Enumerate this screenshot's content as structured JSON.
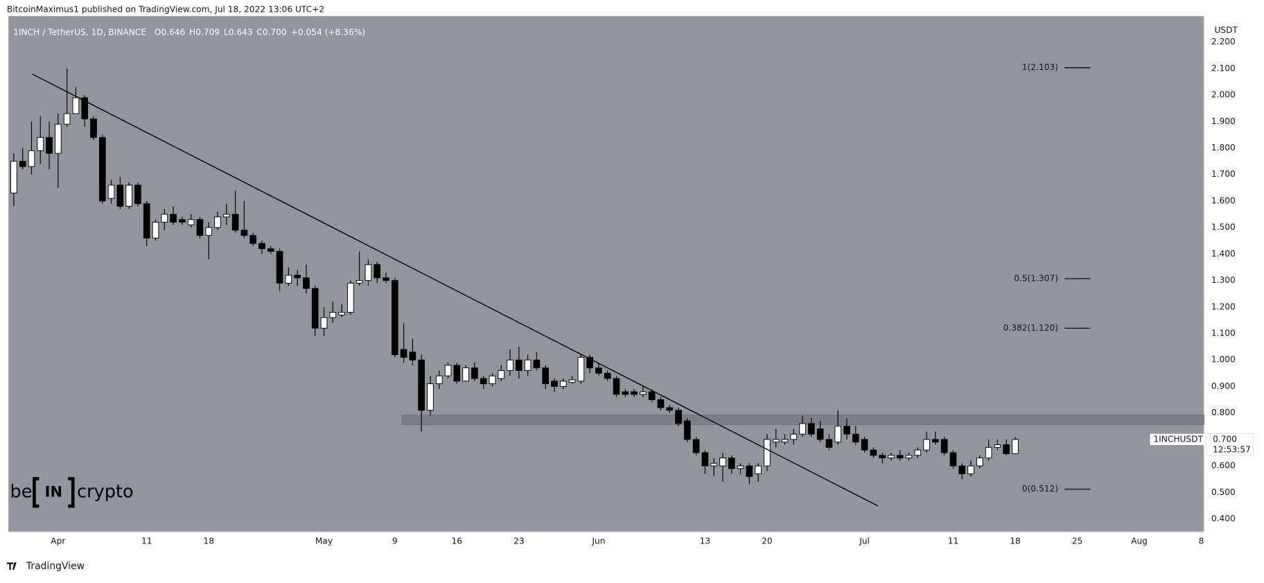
{
  "chart_data": {
    "type": "candlestick",
    "header": "BitcoinMaximus1 published on TradingView.com, Jul 18, 2022 13:06 UTC+2",
    "symbol": "1INCH / TetherUS, 1D, BINANCE",
    "ohlc_legend": [
      {
        "key": "O",
        "value": "0.646"
      },
      {
        "key": "H",
        "value": "0.709"
      },
      {
        "key": "L",
        "value": "0.643"
      },
      {
        "key": "C",
        "value": "0.700"
      }
    ],
    "change": "+0.054 (+8.36%)",
    "y_unit": "USDT",
    "up_color": "#ffffff",
    "down_color": "#000000",
    "background": "#93959c",
    "grid": false,
    "open": [
      1.63,
      1.75,
      1.73,
      1.79,
      1.84,
      1.78,
      1.89,
      1.93,
      1.99,
      1.91,
      1.84,
      1.61,
      1.66,
      1.58,
      1.66,
      1.59,
      1.46,
      1.52,
      1.55,
      1.53,
      1.51,
      1.53,
      1.47,
      1.5,
      1.54,
      1.55,
      1.49,
      1.47,
      1.44,
      1.42,
      1.41,
      1.29,
      1.32,
      1.31,
      1.27,
      1.12,
      1.16,
      1.17,
      1.18,
      1.29,
      1.3,
      1.36,
      1.31,
      1.3,
      1.04,
      1.03,
      1.0,
      0.81,
      0.91,
      0.94,
      0.98,
      0.92,
      0.97,
      0.93,
      0.91,
      0.93,
      0.96,
      1.0,
      0.96,
      1.0,
      0.97,
      0.92,
      0.9,
      0.915,
      0.92,
      1.01,
      0.97,
      0.95,
      0.93,
      0.88,
      0.88,
      0.87,
      0.88,
      0.85,
      0.82,
      0.81,
      0.77,
      0.7,
      0.65,
      0.6,
      0.6,
      0.63,
      0.59,
      0.6,
      0.57,
      0.6,
      0.69,
      0.69,
      0.7,
      0.72,
      0.76,
      0.74,
      0.7,
      0.69,
      0.75,
      0.72,
      0.7,
      0.66,
      0.64,
      0.63,
      0.64,
      0.63,
      0.64,
      0.66,
      0.7,
      0.7,
      0.65,
      0.6,
      0.57,
      0.6,
      0.63,
      0.67,
      0.68,
      0.646
    ],
    "high": [
      1.78,
      1.8,
      1.9,
      1.92,
      1.9,
      1.93,
      2.1,
      2.03,
      2.0,
      1.92,
      1.85,
      1.68,
      1.69,
      1.67,
      1.67,
      1.6,
      1.53,
      1.57,
      1.58,
      1.54,
      1.55,
      1.54,
      1.52,
      1.56,
      1.59,
      1.64,
      1.6,
      1.48,
      1.45,
      1.43,
      1.42,
      1.35,
      1.34,
      1.36,
      1.28,
      1.2,
      1.22,
      1.21,
      1.3,
      1.41,
      1.38,
      1.37,
      1.33,
      1.31,
      1.14,
      1.08,
      1.02,
      0.94,
      0.96,
      0.99,
      0.99,
      0.98,
      0.99,
      0.94,
      0.95,
      0.98,
      1.04,
      1.05,
      1.02,
      1.03,
      0.98,
      0.93,
      0.93,
      0.94,
      1.02,
      1.02,
      0.99,
      0.96,
      0.94,
      0.89,
      0.89,
      0.9,
      0.89,
      0.86,
      0.83,
      0.82,
      0.78,
      0.71,
      0.66,
      0.63,
      0.65,
      0.64,
      0.61,
      0.61,
      0.61,
      0.72,
      0.74,
      0.72,
      0.74,
      0.79,
      0.78,
      0.77,
      0.72,
      0.81,
      0.78,
      0.75,
      0.71,
      0.67,
      0.65,
      0.65,
      0.66,
      0.65,
      0.67,
      0.73,
      0.73,
      0.71,
      0.66,
      0.61,
      0.62,
      0.64,
      0.7,
      0.7,
      0.7,
      0.709
    ],
    "low": [
      1.58,
      1.72,
      1.7,
      1.74,
      1.72,
      1.65,
      1.88,
      1.93,
      1.88,
      1.83,
      1.59,
      1.59,
      1.57,
      1.57,
      1.58,
      1.43,
      1.45,
      1.49,
      1.51,
      1.51,
      1.5,
      1.46,
      1.38,
      1.49,
      1.51,
      1.48,
      1.46,
      1.43,
      1.4,
      1.4,
      1.26,
      1.28,
      1.28,
      1.25,
      1.09,
      1.09,
      1.14,
      1.16,
      1.17,
      1.28,
      1.28,
      1.29,
      1.29,
      1.01,
      0.99,
      0.98,
      0.73,
      0.79,
      0.89,
      0.93,
      0.91,
      0.92,
      0.92,
      0.89,
      0.9,
      0.92,
      0.94,
      0.93,
      0.94,
      0.96,
      0.89,
      0.88,
      0.89,
      0.91,
      0.91,
      0.95,
      0.94,
      0.92,
      0.86,
      0.86,
      0.86,
      0.86,
      0.84,
      0.81,
      0.8,
      0.75,
      0.69,
      0.64,
      0.57,
      0.56,
      0.54,
      0.57,
      0.57,
      0.53,
      0.54,
      0.58,
      0.67,
      0.68,
      0.68,
      0.71,
      0.71,
      0.69,
      0.66,
      0.68,
      0.7,
      0.68,
      0.65,
      0.63,
      0.61,
      0.62,
      0.62,
      0.62,
      0.63,
      0.65,
      0.68,
      0.64,
      0.59,
      0.55,
      0.56,
      0.59,
      0.62,
      0.66,
      0.64,
      0.643
    ],
    "close": [
      1.75,
      1.73,
      1.79,
      1.84,
      1.78,
      1.89,
      1.93,
      1.99,
      1.91,
      1.84,
      1.6,
      1.66,
      1.58,
      1.66,
      1.59,
      1.46,
      1.52,
      1.55,
      1.52,
      1.52,
      1.53,
      1.47,
      1.5,
      1.54,
      1.55,
      1.49,
      1.47,
      1.44,
      1.42,
      1.41,
      1.29,
      1.32,
      1.31,
      1.27,
      1.12,
      1.16,
      1.18,
      1.18,
      1.29,
      1.3,
      1.36,
      1.31,
      1.3,
      1.02,
      1.01,
      1.0,
      0.81,
      0.91,
      0.94,
      0.98,
      0.92,
      0.97,
      0.93,
      0.91,
      0.94,
      0.96,
      1.0,
      0.96,
      1.0,
      0.97,
      0.91,
      0.9,
      0.92,
      0.925,
      1.01,
      0.97,
      0.95,
      0.93,
      0.87,
      0.87,
      0.87,
      0.88,
      0.85,
      0.82,
      0.81,
      0.76,
      0.7,
      0.65,
      0.6,
      0.61,
      0.63,
      0.59,
      0.6,
      0.56,
      0.6,
      0.7,
      0.7,
      0.7,
      0.72,
      0.76,
      0.72,
      0.7,
      0.67,
      0.75,
      0.72,
      0.69,
      0.66,
      0.64,
      0.63,
      0.64,
      0.63,
      0.64,
      0.66,
      0.7,
      0.69,
      0.65,
      0.6,
      0.57,
      0.6,
      0.63,
      0.67,
      0.68,
      0.646,
      0.7
    ],
    "xlim": [
      -0.6,
      134.3
    ],
    "xticks": [
      {
        "value": 5,
        "label": "Apr"
      },
      {
        "value": 15,
        "label": "11"
      },
      {
        "value": 22,
        "label": "18"
      },
      {
        "value": 35,
        "label": "May"
      },
      {
        "value": 43,
        "label": "9"
      },
      {
        "value": 50,
        "label": "16"
      },
      {
        "value": 57,
        "label": "23"
      },
      {
        "value": 66,
        "label": "Jun"
      },
      {
        "value": 78,
        "label": "13"
      },
      {
        "value": 85,
        "label": "20"
      },
      {
        "value": 96,
        "label": "Jul"
      },
      {
        "value": 106,
        "label": "11"
      },
      {
        "value": 113,
        "label": "18"
      },
      {
        "value": 120,
        "label": "25"
      },
      {
        "value": 127,
        "label": "Aug"
      },
      {
        "value": 134,
        "label": "8"
      }
    ],
    "ylim": [
      0.351,
      2.298
    ],
    "yticks": [
      {
        "value": 0.4,
        "label": "0.400"
      },
      {
        "value": 0.5,
        "label": "0.500"
      },
      {
        "value": 0.6,
        "label": "0.600"
      },
      {
        "value": 0.7,
        "label": "0.700"
      },
      {
        "value": 0.8,
        "label": "0.800"
      },
      {
        "value": 0.9,
        "label": "0.900"
      },
      {
        "value": 1.0,
        "label": "1.000"
      },
      {
        "value": 1.1,
        "label": "1.100"
      },
      {
        "value": 1.2,
        "label": "1.200"
      },
      {
        "value": 1.3,
        "label": "1.300"
      },
      {
        "value": 1.4,
        "label": "1.400"
      },
      {
        "value": 1.5,
        "label": "1.500"
      },
      {
        "value": 1.6,
        "label": "1.600"
      },
      {
        "value": 1.7,
        "label": "1.700"
      },
      {
        "value": 1.8,
        "label": "1.800"
      },
      {
        "value": 1.9,
        "label": "1.900"
      },
      {
        "value": 2.0,
        "label": "2.000"
      },
      {
        "value": 2.1,
        "label": "2.100"
      },
      {
        "value": 2.2,
        "label": "2.200"
      }
    ],
    "fib_levels": [
      {
        "label": "1(2.103)",
        "value": 2.103
      },
      {
        "label": "0.5(1.307)",
        "value": 1.307
      },
      {
        "label": "0.382(1.120)",
        "value": 1.12
      },
      {
        "label": "0(0.512)",
        "value": 0.512
      }
    ],
    "trendline": {
      "x": [
        2.1,
        97.5
      ],
      "y": [
        2.079,
        0.449
      ]
    },
    "zone": {
      "x_start": 43.8,
      "y": [
        0.756,
        0.792
      ]
    },
    "price_label": {
      "name": "1INCHUSDT",
      "value": "0.700",
      "countdown": "12:53:57"
    },
    "watermark": [
      "be",
      "IN",
      "crypto"
    ],
    "footer": "TradingView"
  }
}
